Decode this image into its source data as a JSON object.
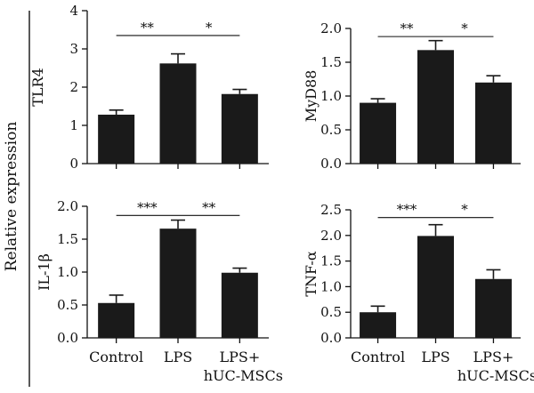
{
  "figure": {
    "shared_ylabel": "Relative expression",
    "categories": [
      "Control",
      "LPS",
      "LPS+"
    ],
    "category_second_line": [
      "",
      "",
      "hUC-MSCs"
    ]
  },
  "chart_data": [
    {
      "type": "bar",
      "ylabel": "TLR4",
      "categories": [
        "Control",
        "LPS",
        "LPS+ hUC-MSCs"
      ],
      "values": [
        1.28,
        2.62,
        1.82
      ],
      "errors": [
        0.12,
        0.25,
        0.12
      ],
      "ylim": [
        0,
        4
      ],
      "yticks": [
        0,
        1,
        2,
        3,
        4
      ],
      "significance": [
        {
          "from": 0,
          "to": 1,
          "label": "**",
          "y": 3.35
        },
        {
          "from": 1,
          "to": 2,
          "label": "*",
          "y": 3.35
        }
      ]
    },
    {
      "type": "bar",
      "ylabel": "MyD88",
      "categories": [
        "Control",
        "LPS",
        "LPS+ hUC-MSCs"
      ],
      "values": [
        0.9,
        1.68,
        1.2
      ],
      "errors": [
        0.06,
        0.14,
        0.1
      ],
      "ylim": [
        0,
        2.0
      ],
      "yticks": [
        0,
        0.5,
        1.0,
        1.5,
        2.0
      ],
      "yticklabels": [
        "0.0",
        "0.5",
        "1.0",
        "1.5",
        "2.0"
      ],
      "significance": [
        {
          "from": 0,
          "to": 1,
          "label": "**",
          "y": 1.88
        },
        {
          "from": 1,
          "to": 2,
          "label": "*",
          "y": 1.88
        }
      ]
    },
    {
      "type": "bar",
      "ylabel": "IL-1β",
      "categories": [
        "Control",
        "LPS",
        "LPS+ hUC-MSCs"
      ],
      "values": [
        0.53,
        1.66,
        0.99
      ],
      "errors": [
        0.12,
        0.13,
        0.07
      ],
      "ylim": [
        0,
        2.0
      ],
      "yticks": [
        0,
        0.5,
        1.0,
        1.5,
        2.0
      ],
      "yticklabels": [
        "0.0",
        "0.5",
        "1.0",
        "1.5",
        "2.0"
      ],
      "significance": [
        {
          "from": 0,
          "to": 1,
          "label": "***",
          "y": 1.86
        },
        {
          "from": 1,
          "to": 2,
          "label": "**",
          "y": 1.86
        }
      ]
    },
    {
      "type": "bar",
      "ylabel": "TNF-α",
      "categories": [
        "Control",
        "LPS",
        "LPS+ hUC-MSCs"
      ],
      "values": [
        0.5,
        1.99,
        1.15
      ],
      "errors": [
        0.12,
        0.22,
        0.18
      ],
      "ylim": [
        0,
        2.5
      ],
      "yticks": [
        0,
        0.5,
        1.0,
        1.5,
        2.0,
        2.5
      ],
      "yticklabels": [
        "0.0",
        "0.5",
        "1.0",
        "1.5",
        "2.0",
        "2.5"
      ],
      "significance": [
        {
          "from": 0,
          "to": 1,
          "label": "***",
          "y": 2.35
        },
        {
          "from": 1,
          "to": 2,
          "label": "*",
          "y": 2.35
        }
      ]
    }
  ]
}
